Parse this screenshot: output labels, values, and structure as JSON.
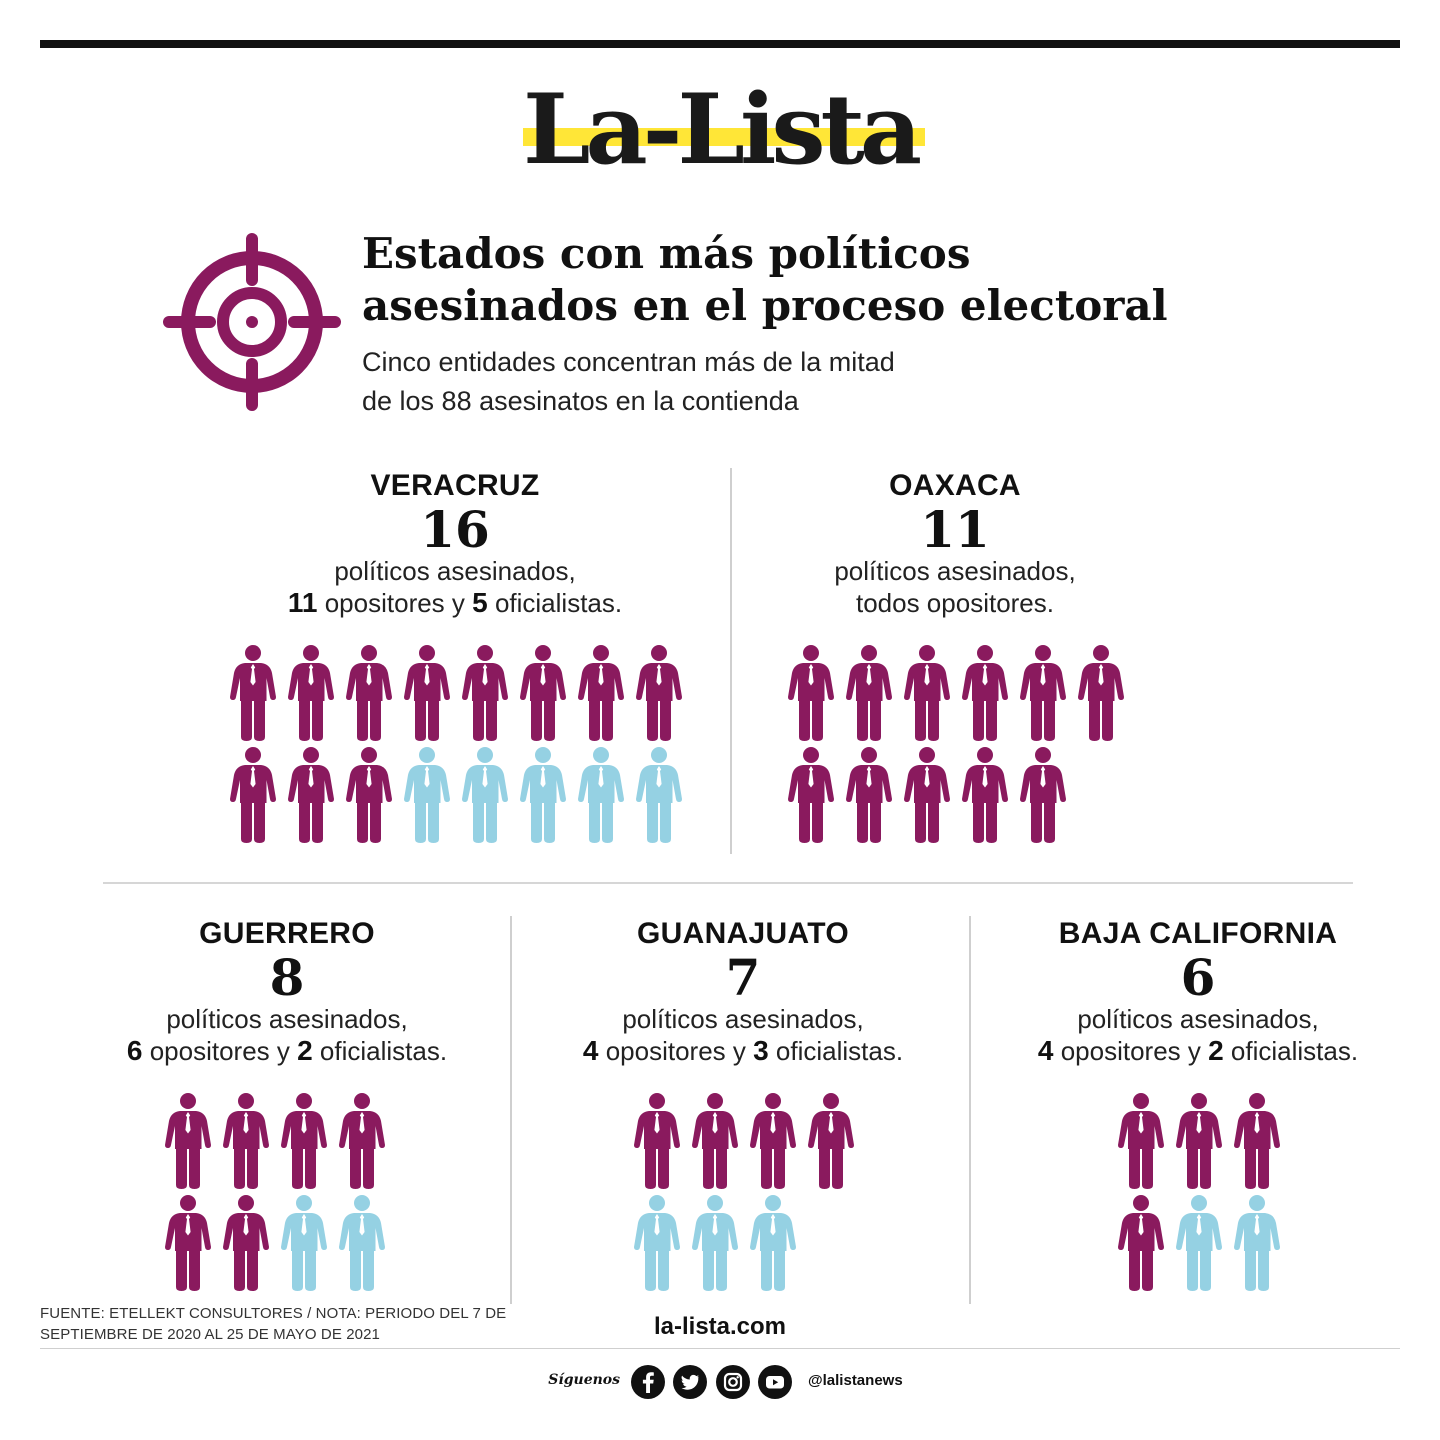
{
  "brand": {
    "name": "La-Lista",
    "highlight_color": "#ffe637"
  },
  "header": {
    "title_lines": [
      "Estados con más políticos",
      "asesinados en el proceso electoral"
    ],
    "subtitle_lines": [
      "Cinco entidades concentran más de la mitad",
      "de los 88 asesinatos en la contienda"
    ],
    "icon": "target-icon"
  },
  "colors": {
    "opositores": "#8a1a5e",
    "oficialistas": "#95d1e3"
  },
  "chart_data": {
    "type": "pictogram",
    "title": "Estados con más políticos asesinados en el proceso electoral",
    "subtitle": "Cinco entidades concentran más de la mitad de los 88 asesinatos en la contienda",
    "unit": "políticos asesinados",
    "series_names": [
      "opositores",
      "oficialistas"
    ],
    "states": [
      {
        "name": "VERACRUZ",
        "total": 16,
        "opositores": 11,
        "oficialistas": 5,
        "per_row": 8,
        "text_total": "16",
        "line1": "políticos asesinados,",
        "line2": {
          "n1": "11",
          "w1": "opositores y",
          "n2": "5",
          "w2": "oficialistas."
        }
      },
      {
        "name": "OAXACA",
        "total": 11,
        "opositores": 11,
        "oficialistas": 0,
        "per_row": 6,
        "text_total": "11",
        "line1": "políticos asesinados,",
        "line2": {
          "n1": "",
          "w1": "todos opositores.",
          "n2": "",
          "w2": ""
        }
      },
      {
        "name": "GUERRERO",
        "total": 8,
        "opositores": 6,
        "oficialistas": 2,
        "per_row": 4,
        "text_total": "8",
        "line1": "políticos asesinados,",
        "line2": {
          "n1": "6",
          "w1": "opositores y",
          "n2": "2",
          "w2": "oficialistas."
        }
      },
      {
        "name": "GUANAJUATO",
        "total": 7,
        "opositores": 4,
        "oficialistas": 3,
        "per_row": 4,
        "text_total": "7",
        "line1": "políticos asesinados,",
        "line2": {
          "n1": "4",
          "w1": "opositores y",
          "n2": "3",
          "w2": "oficialistas."
        }
      },
      {
        "name": "BAJA CALIFORNIA",
        "total": 6,
        "opositores": 4,
        "oficialistas": 2,
        "per_row": 3,
        "text_total": "6",
        "line1": "políticos asesinados,",
        "line2": {
          "n1": "4",
          "w1": "opositores y",
          "n2": "2",
          "w2": "oficialistas."
        }
      }
    ]
  },
  "footer": {
    "note": "FUENTE: ETELLEKT CONSULTORES / NOTA: PERIODO DEL 7 DE SEPTIEMBRE DE 2020 AL 25 DE MAYO DE 2021",
    "site": "la-lista.com",
    "follow_label": "Síguenos",
    "social_icons": [
      "facebook-icon",
      "twitter-icon",
      "instagram-icon",
      "youtube-icon"
    ],
    "handle": "@lalistanews"
  }
}
